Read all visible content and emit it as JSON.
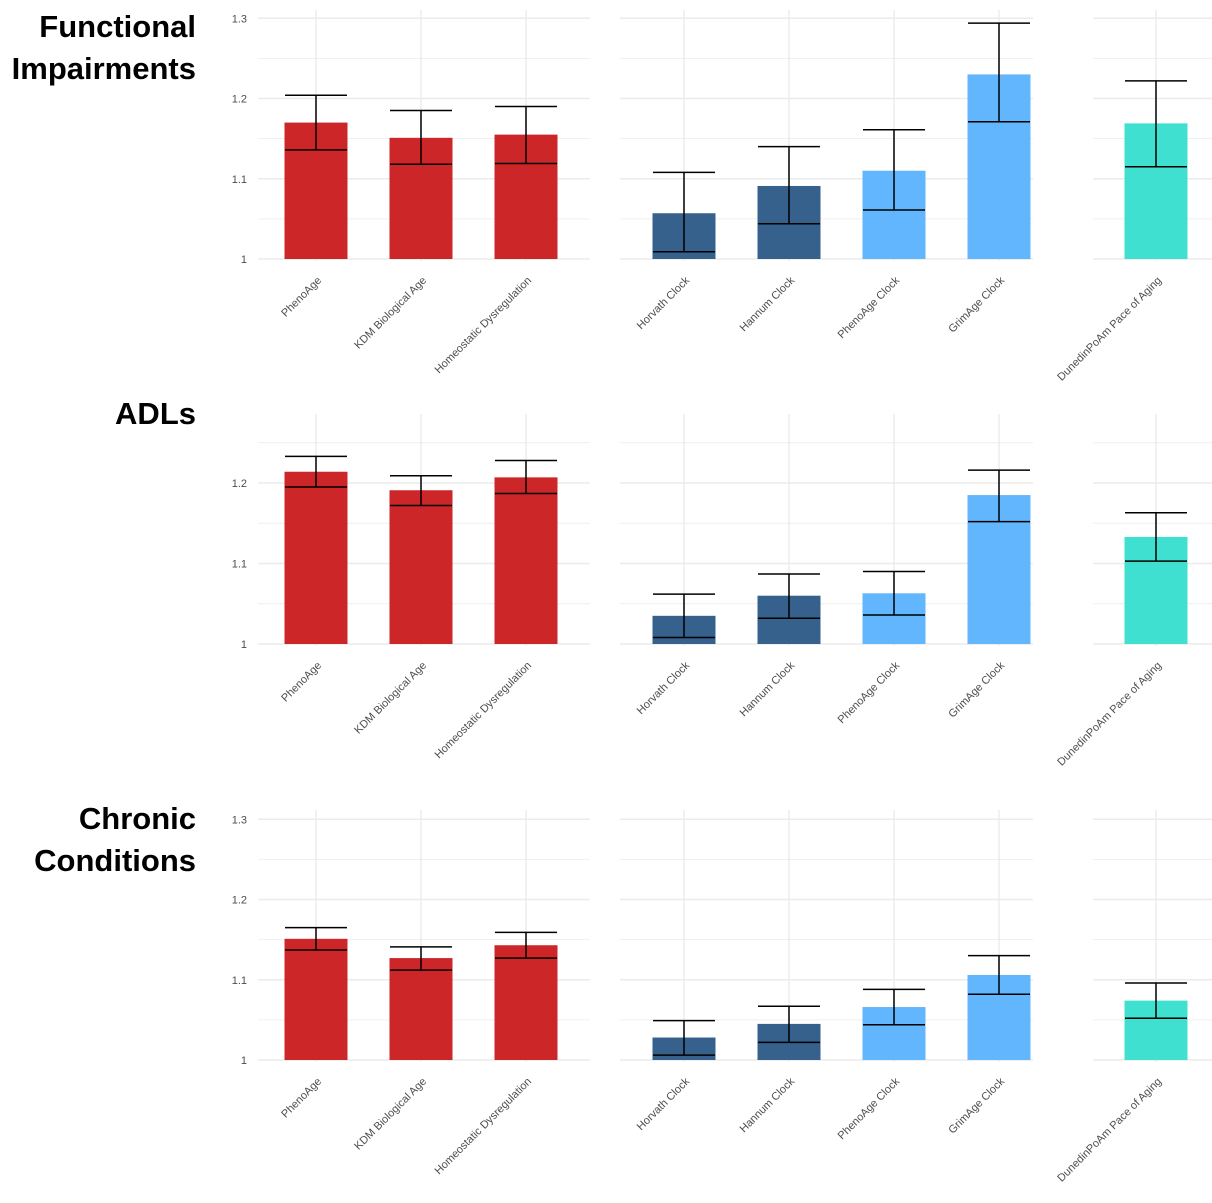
{
  "colors": {
    "phenotypic": "#cc2629",
    "first_gen_clock": "#35618c",
    "second_gen_clock": "#62b6fd",
    "pace_of_aging": "#40e0d0",
    "grid": "#ebebeb",
    "axis_text": "#4d4d4d",
    "error_bar": "#000000"
  },
  "chart_data": [
    {
      "type": "bar",
      "title_lines": [
        "Functional",
        "Impairments"
      ],
      "ylim": [
        1,
        1.3
      ],
      "y_ticks": [
        1,
        1.1,
        1.2,
        1.3
      ],
      "y_tick_labels": [
        "1",
        "1.1",
        "1.2",
        "1.3"
      ],
      "grid": true,
      "panels": [
        {
          "categories": [
            "PhenoAge",
            "KDM Biological Age",
            "Homeostatic Dysregulation"
          ],
          "values": [
            1.17,
            1.151,
            1.155
          ],
          "error_low": [
            1.136,
            1.118,
            1.119
          ],
          "error_high": [
            1.204,
            1.185,
            1.19
          ],
          "colors": [
            "phenotypic",
            "phenotypic",
            "phenotypic"
          ]
        },
        {
          "categories": [
            "Horvath Clock",
            "Hannum Clock",
            "PhenoAge Clock",
            "GrimAge Clock"
          ],
          "values": [
            1.057,
            1.091,
            1.11,
            1.23
          ],
          "error_low": [
            1.009,
            1.044,
            1.061,
            1.171
          ],
          "error_high": [
            1.108,
            1.14,
            1.161,
            1.294
          ],
          "colors": [
            "first_gen_clock",
            "first_gen_clock",
            "second_gen_clock",
            "second_gen_clock"
          ]
        },
        {
          "categories": [
            "DunedinPoAm Pace of Aging"
          ],
          "values": [
            1.169
          ],
          "error_low": [
            1.115
          ],
          "error_high": [
            1.222
          ],
          "colors": [
            "pace_of_aging"
          ]
        }
      ]
    },
    {
      "type": "bar",
      "title_lines": [
        "ADLs"
      ],
      "ylim": [
        1,
        1.25
      ],
      "y_ticks": [
        1,
        1.1,
        1.2
      ],
      "y_tick_labels": [
        "1",
        "1.1",
        "1.2"
      ],
      "grid": true,
      "panels": [
        {
          "categories": [
            "PhenoAge",
            "KDM Biological Age",
            "Homeostatic Dysregulation"
          ],
          "values": [
            1.214,
            1.191,
            1.207
          ],
          "error_low": [
            1.195,
            1.172,
            1.187
          ],
          "error_high": [
            1.233,
            1.209,
            1.228
          ],
          "colors": [
            "phenotypic",
            "phenotypic",
            "phenotypic"
          ]
        },
        {
          "categories": [
            "Horvath Clock",
            "Hannum Clock",
            "PhenoAge Clock",
            "GrimAge Clock"
          ],
          "values": [
            1.035,
            1.06,
            1.063,
            1.185
          ],
          "error_low": [
            1.008,
            1.032,
            1.036,
            1.152
          ],
          "error_high": [
            1.062,
            1.087,
            1.09,
            1.216
          ],
          "colors": [
            "first_gen_clock",
            "first_gen_clock",
            "second_gen_clock",
            "second_gen_clock"
          ]
        },
        {
          "categories": [
            "DunedinPoAm Pace of Aging"
          ],
          "values": [
            1.133
          ],
          "error_low": [
            1.103
          ],
          "error_high": [
            1.163
          ],
          "colors": [
            "pace_of_aging"
          ]
        }
      ]
    },
    {
      "type": "bar",
      "title_lines": [
        "Chronic",
        "Conditions"
      ],
      "ylim": [
        1,
        1.3
      ],
      "y_ticks": [
        1,
        1.1,
        1.2,
        1.3
      ],
      "y_tick_labels": [
        "1",
        "1.1",
        "1.2",
        "1.3"
      ],
      "grid": true,
      "panels": [
        {
          "categories": [
            "PhenoAge",
            "KDM Biological Age",
            "Homeostatic Dysregulation"
          ],
          "values": [
            1.151,
            1.127,
            1.143
          ],
          "error_low": [
            1.137,
            1.112,
            1.127
          ],
          "error_high": [
            1.165,
            1.141,
            1.159
          ],
          "colors": [
            "phenotypic",
            "phenotypic",
            "phenotypic"
          ]
        },
        {
          "categories": [
            "Horvath Clock",
            "Hannum Clock",
            "PhenoAge Clock",
            "GrimAge Clock"
          ],
          "values": [
            1.028,
            1.045,
            1.066,
            1.106
          ],
          "error_low": [
            1.006,
            1.022,
            1.044,
            1.082
          ],
          "error_high": [
            1.049,
            1.067,
            1.088,
            1.13
          ],
          "colors": [
            "first_gen_clock",
            "first_gen_clock",
            "second_gen_clock",
            "second_gen_clock"
          ]
        },
        {
          "categories": [
            "DunedinPoAm Pace of Aging"
          ],
          "values": [
            1.074
          ],
          "error_low": [
            1.052
          ],
          "error_high": [
            1.096
          ],
          "colors": [
            "pace_of_aging"
          ]
        }
      ]
    }
  ]
}
